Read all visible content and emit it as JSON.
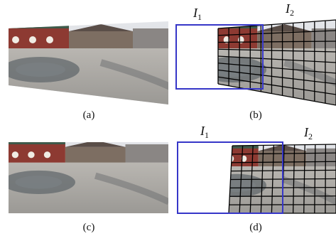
{
  "panels": [
    {
      "caption": "(a)"
    },
    {
      "caption": "(b)",
      "labels": [
        {
          "symbol": "I",
          "subscript": "1"
        },
        {
          "symbol": "I",
          "subscript": "2"
        }
      ]
    },
    {
      "caption": "(c)"
    },
    {
      "caption": "(d)",
      "labels": [
        {
          "symbol": "I",
          "subscript": "1"
        },
        {
          "symbol": "I",
          "subscript": "2"
        }
      ]
    }
  ]
}
